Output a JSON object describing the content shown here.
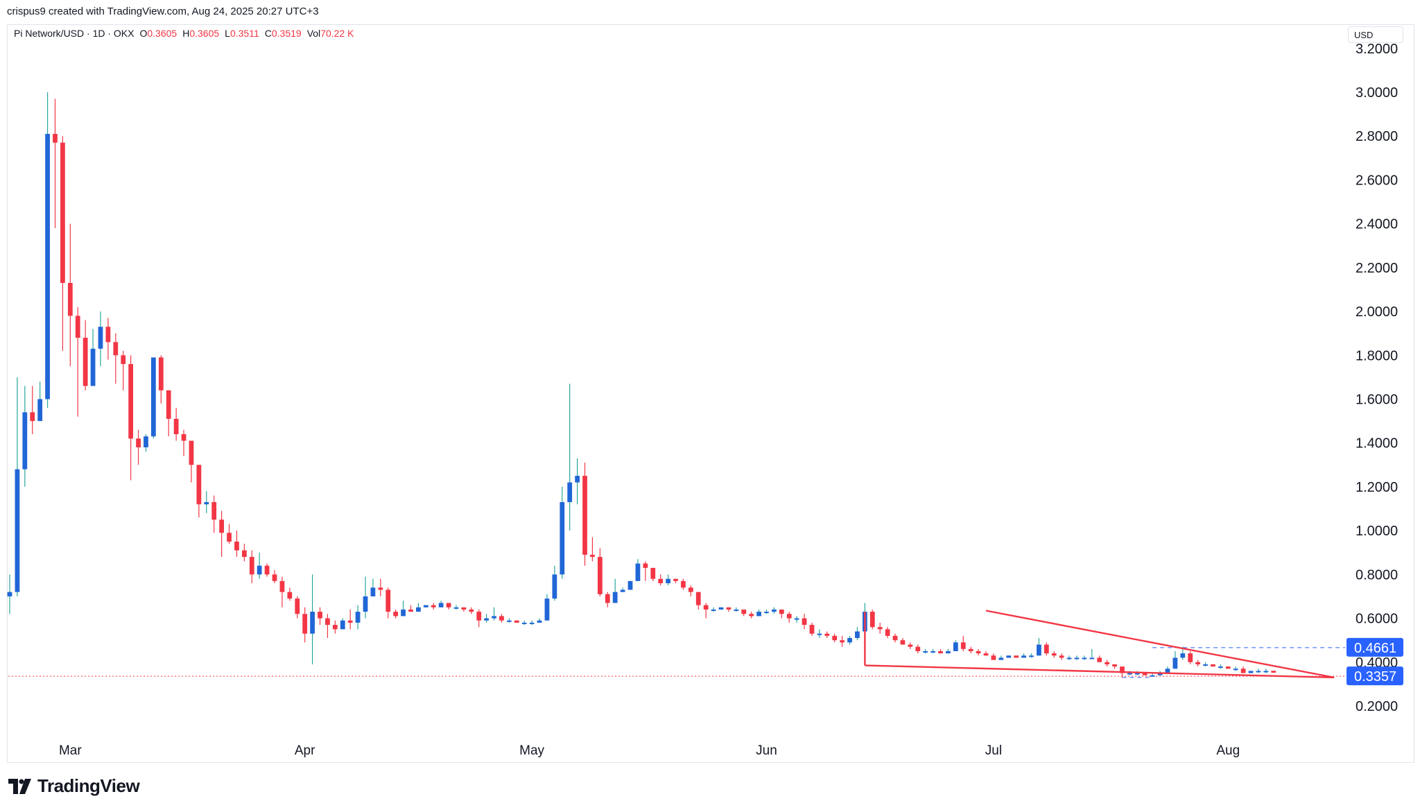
{
  "header": {
    "created_by": "crispus9 created with TradingView.com, Aug 24, 2025 20:27 UTC+3"
  },
  "legend": {
    "symbol": "Pi Network/USD · 1D · OKX",
    "open_key": "O",
    "open": "0.3605",
    "high_key": "H",
    "high": "0.3605",
    "low_key": "L",
    "low": "0.3511",
    "close_key": "C",
    "close": "0.3519",
    "vol_key": "Vol",
    "vol": "70.22 K"
  },
  "currency": "USD",
  "brand": {
    "name": "TradingView"
  },
  "colors": {
    "up": "#2166d6",
    "down": "#f23645",
    "wick_up": "#26a69a",
    "trendline": "#f23645",
    "price_line": "#f23645",
    "tag_bg": "#2962ff"
  },
  "chart_data": {
    "type": "candlestick",
    "title": "Pi Network/USD · 1D · OKX",
    "ylim": [
      0.15,
      3.2
    ],
    "y_ticks": [
      "3.2000",
      "3.0000",
      "2.8000",
      "2.6000",
      "2.4000",
      "2.2000",
      "2.0000",
      "1.8000",
      "1.6000",
      "1.4000",
      "1.2000",
      "1.0000",
      "0.8000",
      "0.6000",
      "0.4000",
      "0.2000"
    ],
    "y_tick_values": [
      3.2,
      3.0,
      2.8,
      2.6,
      2.4,
      2.2,
      2.0,
      1.8,
      1.6,
      1.4,
      1.2,
      1.0,
      0.8,
      0.6,
      0.4,
      0.2
    ],
    "x_ticks": [
      {
        "label": "Mar",
        "day": 8
      },
      {
        "label": "Apr",
        "day": 39
      },
      {
        "label": "May",
        "day": 69
      },
      {
        "label": "Jun",
        "day": 100
      },
      {
        "label": "Jul",
        "day": 130
      },
      {
        "label": "Aug",
        "day": 161
      }
    ],
    "candles": [
      [
        0.7,
        0.72,
        0.62,
        0.8
      ],
      [
        0.72,
        1.28,
        0.7,
        1.7
      ],
      [
        1.28,
        1.54,
        1.2,
        1.66
      ],
      [
        1.54,
        1.5,
        1.44,
        1.66
      ],
      [
        1.5,
        1.6,
        1.5,
        1.68
      ],
      [
        1.6,
        2.81,
        1.56,
        3.0
      ],
      [
        2.81,
        2.77,
        2.38,
        2.97
      ],
      [
        2.77,
        2.13,
        1.82,
        2.8
      ],
      [
        2.13,
        1.98,
        1.75,
        2.4
      ],
      [
        1.98,
        1.88,
        1.52,
        2.02
      ],
      [
        1.88,
        1.66,
        1.64,
        1.96
      ],
      [
        1.66,
        1.83,
        1.66,
        1.92
      ],
      [
        1.83,
        1.93,
        1.75,
        2.0
      ],
      [
        1.93,
        1.86,
        1.78,
        1.97
      ],
      [
        1.86,
        1.8,
        1.67,
        1.9
      ],
      [
        1.8,
        1.76,
        1.64,
        1.82
      ],
      [
        1.76,
        1.42,
        1.23,
        1.8
      ],
      [
        1.42,
        1.38,
        1.3,
        1.46
      ],
      [
        1.38,
        1.43,
        1.36,
        1.44
      ],
      [
        1.43,
        1.79,
        1.42,
        1.79
      ],
      [
        1.79,
        1.64,
        1.58,
        1.8
      ],
      [
        1.64,
        1.51,
        1.43,
        1.64
      ],
      [
        1.51,
        1.44,
        1.41,
        1.56
      ],
      [
        1.44,
        1.41,
        1.34,
        1.46
      ],
      [
        1.41,
        1.3,
        1.22,
        1.41
      ],
      [
        1.3,
        1.12,
        1.06,
        1.3
      ],
      [
        1.12,
        1.13,
        1.08,
        1.18
      ],
      [
        1.13,
        1.05,
        0.99,
        1.16
      ],
      [
        1.05,
        0.99,
        0.88,
        1.09
      ],
      [
        0.99,
        0.95,
        0.94,
        1.03
      ],
      [
        0.95,
        0.91,
        0.88,
        1.0
      ],
      [
        0.91,
        0.88,
        0.86,
        0.94
      ],
      [
        0.88,
        0.8,
        0.76,
        0.91
      ],
      [
        0.8,
        0.84,
        0.78,
        0.9
      ],
      [
        0.84,
        0.8,
        0.79,
        0.85
      ],
      [
        0.8,
        0.77,
        0.76,
        0.82
      ],
      [
        0.77,
        0.72,
        0.65,
        0.79
      ],
      [
        0.72,
        0.69,
        0.68,
        0.74
      ],
      [
        0.69,
        0.62,
        0.6,
        0.7
      ],
      [
        0.62,
        0.53,
        0.49,
        0.65
      ],
      [
        0.53,
        0.63,
        0.39,
        0.8
      ],
      [
        0.63,
        0.6,
        0.57,
        0.65
      ],
      [
        0.6,
        0.57,
        0.51,
        0.62
      ],
      [
        0.57,
        0.55,
        0.53,
        0.59
      ],
      [
        0.55,
        0.59,
        0.55,
        0.6
      ],
      [
        0.59,
        0.58,
        0.55,
        0.64
      ],
      [
        0.58,
        0.63,
        0.55,
        0.66
      ],
      [
        0.63,
        0.7,
        0.6,
        0.79
      ],
      [
        0.7,
        0.74,
        0.7,
        0.78
      ],
      [
        0.74,
        0.73,
        0.7,
        0.78
      ],
      [
        0.73,
        0.63,
        0.6,
        0.74
      ],
      [
        0.63,
        0.61,
        0.6,
        0.64
      ],
      [
        0.61,
        0.64,
        0.61,
        0.68
      ],
      [
        0.64,
        0.63,
        0.63,
        0.66
      ],
      [
        0.63,
        0.65,
        0.63,
        0.67
      ],
      [
        0.65,
        0.66,
        0.65,
        0.66
      ],
      [
        0.66,
        0.65,
        0.64,
        0.67
      ],
      [
        0.65,
        0.67,
        0.65,
        0.68
      ],
      [
        0.67,
        0.65,
        0.64,
        0.67
      ],
      [
        0.65,
        0.65,
        0.64,
        0.66
      ],
      [
        0.65,
        0.64,
        0.63,
        0.65
      ],
      [
        0.64,
        0.63,
        0.62,
        0.65
      ],
      [
        0.63,
        0.59,
        0.56,
        0.64
      ],
      [
        0.59,
        0.6,
        0.58,
        0.62
      ],
      [
        0.6,
        0.61,
        0.59,
        0.65
      ],
      [
        0.61,
        0.59,
        0.58,
        0.62
      ],
      [
        0.59,
        0.59,
        0.58,
        0.6
      ],
      [
        0.59,
        0.58,
        0.58,
        0.59
      ],
      [
        0.58,
        0.58,
        0.57,
        0.59
      ],
      [
        0.58,
        0.58,
        0.57,
        0.59
      ],
      [
        0.58,
        0.59,
        0.58,
        0.6
      ],
      [
        0.59,
        0.69,
        0.59,
        0.71
      ],
      [
        0.69,
        0.8,
        0.68,
        0.84
      ],
      [
        0.8,
        1.13,
        0.78,
        1.2
      ],
      [
        1.13,
        1.22,
        1.0,
        1.67
      ],
      [
        1.22,
        1.25,
        1.12,
        1.33
      ],
      [
        1.25,
        0.89,
        0.84,
        1.31
      ],
      [
        0.89,
        0.88,
        0.86,
        0.97
      ],
      [
        0.88,
        0.71,
        0.7,
        0.92
      ],
      [
        0.71,
        0.67,
        0.65,
        0.72
      ],
      [
        0.67,
        0.72,
        0.67,
        0.78
      ],
      [
        0.72,
        0.73,
        0.72,
        0.74
      ],
      [
        0.73,
        0.77,
        0.73,
        0.77
      ],
      [
        0.77,
        0.85,
        0.77,
        0.87
      ],
      [
        0.85,
        0.83,
        0.77,
        0.86
      ],
      [
        0.83,
        0.78,
        0.77,
        0.83
      ],
      [
        0.78,
        0.76,
        0.75,
        0.8
      ],
      [
        0.76,
        0.78,
        0.75,
        0.8
      ],
      [
        0.78,
        0.77,
        0.76,
        0.78
      ],
      [
        0.77,
        0.74,
        0.73,
        0.78
      ],
      [
        0.74,
        0.72,
        0.7,
        0.75
      ],
      [
        0.72,
        0.66,
        0.64,
        0.72
      ],
      [
        0.66,
        0.64,
        0.6,
        0.67
      ],
      [
        0.64,
        0.64,
        0.63,
        0.65
      ],
      [
        0.64,
        0.65,
        0.64,
        0.65
      ],
      [
        0.65,
        0.64,
        0.63,
        0.65
      ],
      [
        0.64,
        0.64,
        0.63,
        0.65
      ],
      [
        0.64,
        0.62,
        0.61,
        0.64
      ],
      [
        0.62,
        0.61,
        0.6,
        0.63
      ],
      [
        0.61,
        0.63,
        0.61,
        0.64
      ],
      [
        0.63,
        0.63,
        0.62,
        0.64
      ],
      [
        0.63,
        0.64,
        0.62,
        0.65
      ],
      [
        0.64,
        0.62,
        0.6,
        0.64
      ],
      [
        0.62,
        0.6,
        0.58,
        0.63
      ],
      [
        0.6,
        0.6,
        0.58,
        0.61
      ],
      [
        0.6,
        0.57,
        0.55,
        0.62
      ],
      [
        0.57,
        0.53,
        0.52,
        0.58
      ],
      [
        0.53,
        0.53,
        0.51,
        0.55
      ],
      [
        0.53,
        0.52,
        0.51,
        0.54
      ],
      [
        0.52,
        0.5,
        0.49,
        0.53
      ],
      [
        0.5,
        0.49,
        0.47,
        0.52
      ],
      [
        0.49,
        0.51,
        0.48,
        0.52
      ],
      [
        0.51,
        0.54,
        0.5,
        0.56
      ],
      [
        0.54,
        0.63,
        0.54,
        0.67
      ],
      [
        0.63,
        0.56,
        0.55,
        0.64
      ],
      [
        0.56,
        0.55,
        0.53,
        0.58
      ],
      [
        0.55,
        0.52,
        0.51,
        0.56
      ],
      [
        0.52,
        0.5,
        0.49,
        0.53
      ],
      [
        0.5,
        0.48,
        0.48,
        0.51
      ],
      [
        0.48,
        0.47,
        0.46,
        0.49
      ],
      [
        0.47,
        0.45,
        0.44,
        0.48
      ],
      [
        0.45,
        0.45,
        0.44,
        0.46
      ],
      [
        0.45,
        0.45,
        0.44,
        0.46
      ],
      [
        0.45,
        0.44,
        0.44,
        0.46
      ],
      [
        0.44,
        0.45,
        0.44,
        0.46
      ],
      [
        0.45,
        0.49,
        0.45,
        0.5
      ],
      [
        0.49,
        0.46,
        0.45,
        0.52
      ],
      [
        0.46,
        0.45,
        0.44,
        0.47
      ],
      [
        0.45,
        0.44,
        0.43,
        0.46
      ],
      [
        0.44,
        0.43,
        0.43,
        0.45
      ],
      [
        0.43,
        0.41,
        0.41,
        0.44
      ],
      [
        0.41,
        0.42,
        0.41,
        0.43
      ],
      [
        0.42,
        0.43,
        0.42,
        0.43
      ],
      [
        0.43,
        0.42,
        0.42,
        0.43
      ],
      [
        0.42,
        0.43,
        0.42,
        0.44
      ],
      [
        0.43,
        0.43,
        0.42,
        0.44
      ],
      [
        0.43,
        0.48,
        0.43,
        0.51
      ],
      [
        0.48,
        0.44,
        0.43,
        0.49
      ],
      [
        0.44,
        0.43,
        0.42,
        0.45
      ],
      [
        0.43,
        0.42,
        0.41,
        0.44
      ],
      [
        0.42,
        0.42,
        0.41,
        0.43
      ],
      [
        0.42,
        0.42,
        0.41,
        0.43
      ],
      [
        0.42,
        0.42,
        0.41,
        0.43
      ],
      [
        0.42,
        0.42,
        0.42,
        0.46
      ],
      [
        0.42,
        0.4,
        0.4,
        0.43
      ],
      [
        0.4,
        0.39,
        0.38,
        0.41
      ],
      [
        0.39,
        0.38,
        0.37,
        0.39
      ],
      [
        0.38,
        0.35,
        0.33,
        0.38
      ],
      [
        0.35,
        0.35,
        0.34,
        0.36
      ],
      [
        0.35,
        0.35,
        0.34,
        0.36
      ],
      [
        0.35,
        0.34,
        0.34,
        0.35
      ],
      [
        0.34,
        0.34,
        0.34,
        0.35
      ],
      [
        0.34,
        0.35,
        0.34,
        0.36
      ],
      [
        0.35,
        0.37,
        0.35,
        0.38
      ],
      [
        0.37,
        0.42,
        0.37,
        0.45
      ],
      [
        0.42,
        0.44,
        0.41,
        0.47
      ],
      [
        0.44,
        0.4,
        0.39,
        0.45
      ],
      [
        0.4,
        0.39,
        0.38,
        0.41
      ],
      [
        0.39,
        0.39,
        0.38,
        0.4
      ],
      [
        0.39,
        0.38,
        0.38,
        0.39
      ],
      [
        0.38,
        0.38,
        0.37,
        0.39
      ],
      [
        0.38,
        0.37,
        0.37,
        0.38
      ],
      [
        0.37,
        0.37,
        0.36,
        0.38
      ],
      [
        0.37,
        0.35,
        0.35,
        0.38
      ],
      [
        0.35,
        0.36,
        0.35,
        0.36
      ],
      [
        0.36,
        0.36,
        0.35,
        0.37
      ],
      [
        0.36,
        0.36,
        0.35,
        0.37
      ],
      [
        0.3605,
        0.3519,
        0.3511,
        0.3605
      ]
    ],
    "trendlines": [
      {
        "from": [
          129,
          0.635
        ],
        "to": [
          175,
          0.33
        ]
      },
      {
        "from": [
          113,
          0.385
        ],
        "to": [
          175,
          0.33
        ]
      },
      {
        "from": [
          113,
          0.63
        ],
        "to": [
          113,
          0.385
        ]
      }
    ],
    "current_price": 0.3357,
    "current_price_label": "0.3357",
    "marked_level": 0.4661,
    "marked_level_label": "0.4661",
    "x_axis_range_days": [
      0,
      176
    ]
  }
}
